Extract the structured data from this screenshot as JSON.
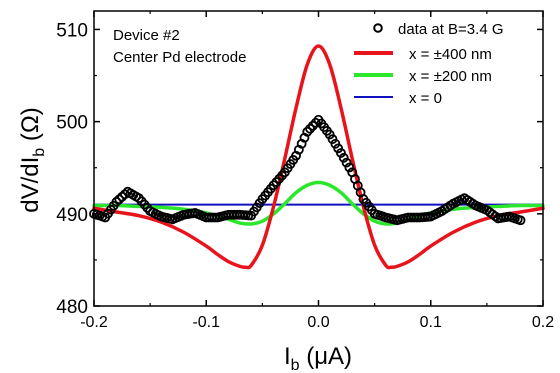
{
  "chart_data": {
    "type": "line",
    "xlabel_main": "I",
    "xlabel_sub": "b",
    "xlabel_unit": "(μA)",
    "ylabel_main": "dV/dI",
    "ylabel_sub": "b",
    "ylabel_unit": "(Ω)",
    "xlim": [
      -0.2,
      0.2
    ],
    "ylim": [
      480,
      512
    ],
    "x_ticks": [
      -0.2,
      -0.1,
      0.0,
      0.1,
      0.2
    ],
    "x_tick_labels": [
      "-0.2",
      "-0.1",
      "0.0",
      "0.1",
      "0.2"
    ],
    "y_ticks": [
      480,
      490,
      500,
      510
    ],
    "y_tick_labels": [
      "480",
      "490",
      "500",
      "510"
    ],
    "grid": false,
    "legend_position": "top-right",
    "annotations": [
      "Device #2",
      "Center Pd electrode"
    ],
    "series": [
      {
        "name": "data at B=3.4 G",
        "kind": "scatter",
        "marker": "open-circle",
        "color": "#000000",
        "x": [
          -0.2,
          -0.19,
          -0.18,
          -0.17,
          -0.16,
          -0.15,
          -0.14,
          -0.13,
          -0.12,
          -0.11,
          -0.1,
          -0.09,
          -0.08,
          -0.07,
          -0.06,
          -0.05,
          -0.04,
          -0.03,
          -0.02,
          -0.01,
          0.0,
          0.01,
          0.02,
          0.03,
          0.04,
          0.05,
          0.06,
          0.07,
          0.08,
          0.09,
          0.1,
          0.11,
          0.12,
          0.13,
          0.14,
          0.15,
          0.16,
          0.17,
          0.18
        ],
        "y": [
          490,
          489.6,
          491.3,
          492.4,
          491.7,
          490.3,
          489.7,
          489.4,
          489.9,
          490.1,
          489.6,
          489.6,
          489.9,
          489.9,
          489.8,
          491.6,
          493.1,
          494.5,
          496.3,
          498.9,
          500.2,
          498.6,
          496.6,
          494.5,
          491.6,
          490,
          489.6,
          489.3,
          489.6,
          489.6,
          489.7,
          490.3,
          491.1,
          491.7,
          490.9,
          490.4,
          489.5,
          489.7,
          489.3
        ]
      },
      {
        "name": "x = ±400 nm",
        "kind": "line",
        "color": "#e8141b",
        "x": [
          -0.2,
          -0.18,
          -0.16,
          -0.14,
          -0.12,
          -0.1,
          -0.09,
          -0.08,
          -0.07,
          -0.065,
          -0.06,
          -0.05,
          -0.04,
          -0.03,
          -0.02,
          -0.01,
          0.0,
          0.01,
          0.02,
          0.03,
          0.04,
          0.05,
          0.06,
          0.065,
          0.07,
          0.08,
          0.09,
          0.1,
          0.12,
          0.14,
          0.16,
          0.18,
          0.2
        ],
        "y": [
          490.6,
          490.2,
          489.8,
          489.1,
          488.0,
          486.5,
          485.6,
          484.8,
          484.3,
          484.2,
          484.4,
          486.6,
          490.8,
          496.0,
          501.5,
          506.2,
          508.2,
          506.2,
          501.5,
          496.0,
          490.8,
          486.6,
          484.4,
          484.2,
          484.3,
          484.8,
          485.6,
          486.5,
          488.0,
          489.1,
          489.8,
          490.2,
          490.6
        ]
      },
      {
        "name": "x = ±200 nm",
        "kind": "line",
        "color": "#2be72b",
        "x": [
          -0.2,
          -0.18,
          -0.16,
          -0.14,
          -0.12,
          -0.1,
          -0.08,
          -0.07,
          -0.06,
          -0.05,
          -0.04,
          -0.03,
          -0.02,
          -0.01,
          0.0,
          0.01,
          0.02,
          0.03,
          0.04,
          0.05,
          0.06,
          0.07,
          0.08,
          0.1,
          0.12,
          0.14,
          0.16,
          0.18,
          0.2
        ],
        "y": [
          490.9,
          490.9,
          490.8,
          490.7,
          490.5,
          490.1,
          489.4,
          489.0,
          488.9,
          489.2,
          490.0,
          491.1,
          492.3,
          493.1,
          493.4,
          493.1,
          492.3,
          491.1,
          490.0,
          489.2,
          488.9,
          489.0,
          489.4,
          490.1,
          490.5,
          490.7,
          490.8,
          490.9,
          490.9
        ]
      },
      {
        "name": "x = 0",
        "kind": "line",
        "color": "#1010c0",
        "x": [
          -0.2,
          0.2
        ],
        "y": [
          491.0,
          491.0
        ]
      }
    ]
  }
}
